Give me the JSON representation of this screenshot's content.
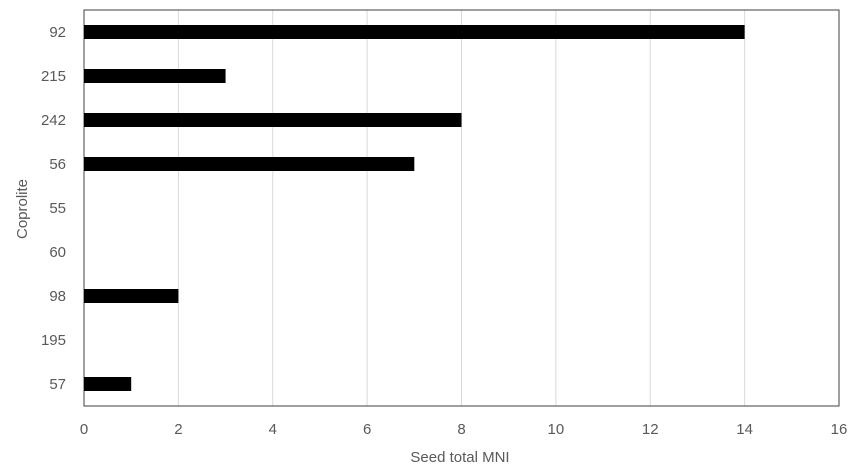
{
  "chart_data": {
    "type": "bar",
    "orientation": "horizontal",
    "categories": [
      "92",
      "215",
      "242",
      "56",
      "55",
      "60",
      "98",
      "195",
      "57"
    ],
    "values": [
      14,
      3,
      8,
      7,
      0,
      0,
      2,
      0,
      1
    ],
    "xlabel": "Seed total MNI",
    "ylabel": "Coprolite",
    "xlim": [
      0,
      16
    ],
    "xticks": [
      0,
      2,
      4,
      6,
      8,
      10,
      12,
      14,
      16
    ],
    "grid": "vertical",
    "bar_color": "#000000",
    "legend": "none"
  }
}
